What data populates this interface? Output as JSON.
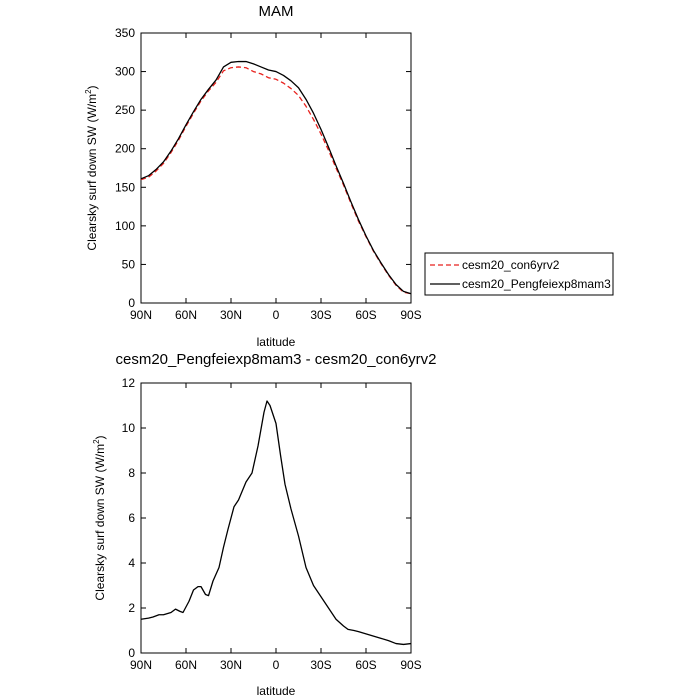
{
  "chart_data": [
    {
      "type": "line",
      "title": "MAM",
      "xlabel": "latitude",
      "ylabel": "Clearsky surf down SW (W/m",
      "ylabel_sup": "2",
      "ylabel_tail": ")",
      "xlim": [
        90,
        -90
      ],
      "ylim": [
        0,
        350
      ],
      "xticks": [
        {
          "value": 90,
          "label": "90N"
        },
        {
          "value": 60,
          "label": "60N"
        },
        {
          "value": 30,
          "label": "30N"
        },
        {
          "value": 0,
          "label": "0"
        },
        {
          "value": -30,
          "label": "30S"
        },
        {
          "value": -60,
          "label": "60S"
        },
        {
          "value": -90,
          "label": "90S"
        }
      ],
      "yticks": [
        0,
        50,
        100,
        150,
        200,
        250,
        300,
        350
      ],
      "grid": false,
      "legend_position": "right",
      "series": [
        {
          "name": "cesm20_con6yrv2",
          "color": "#e8211d",
          "style": "dashed",
          "x": [
            90,
            85,
            80,
            75,
            70,
            65,
            60,
            55,
            50,
            45,
            40,
            35,
            30,
            25,
            20,
            15,
            10,
            5,
            0,
            -5,
            -10,
            -15,
            -20,
            -25,
            -30,
            -35,
            -40,
            -45,
            -50,
            -55,
            -60,
            -65,
            -70,
            -75,
            -80,
            -85,
            -90
          ],
          "y": [
            160,
            163,
            171,
            181,
            195,
            211,
            229,
            246,
            262,
            275,
            286,
            301,
            305,
            306,
            305,
            300,
            297,
            292,
            290,
            285,
            278,
            269,
            255,
            238,
            219,
            198,
            175,
            153,
            129,
            106,
            86,
            67,
            51,
            36,
            23,
            14,
            12
          ]
        },
        {
          "name": "cesm20_Pengfeiexp8mam3",
          "color": "#000000",
          "style": "solid",
          "x": [
            90,
            85,
            80,
            75,
            70,
            65,
            60,
            55,
            50,
            45,
            40,
            35,
            30,
            25,
            20,
            15,
            10,
            5,
            0,
            -5,
            -10,
            -15,
            -20,
            -25,
            -30,
            -35,
            -40,
            -45,
            -50,
            -55,
            -60,
            -65,
            -70,
            -75,
            -80,
            -85,
            -90
          ],
          "y": [
            161,
            165,
            173,
            183,
            197,
            213,
            231,
            248,
            264,
            277,
            289,
            306,
            312,
            313,
            313,
            310,
            306,
            302,
            300,
            295,
            288,
            279,
            264,
            246,
            225,
            202,
            178,
            155,
            131,
            108,
            87,
            68,
            52,
            37,
            24,
            15,
            12
          ]
        }
      ]
    },
    {
      "type": "line",
      "title": "cesm20_Pengfeiexp8mam3 - cesm20_con6yrv2",
      "xlabel": "latitude",
      "ylabel": "Clearsky surf down SW (W/m",
      "ylabel_sup": "2",
      "ylabel_tail": ")",
      "xlim": [
        90,
        -90
      ],
      "ylim": [
        0,
        12
      ],
      "xticks": [
        {
          "value": 90,
          "label": "90N"
        },
        {
          "value": 60,
          "label": "60N"
        },
        {
          "value": 30,
          "label": "30N"
        },
        {
          "value": 0,
          "label": "0"
        },
        {
          "value": -30,
          "label": "30S"
        },
        {
          "value": -60,
          "label": "60S"
        },
        {
          "value": -90,
          "label": "90S"
        }
      ],
      "yticks": [
        0,
        2,
        4,
        6,
        8,
        10,
        12
      ],
      "grid": false,
      "series": [
        {
          "color": "#000000",
          "style": "solid",
          "x": [
            90,
            85,
            82,
            78,
            75,
            70,
            67,
            64,
            62,
            58,
            55,
            52,
            50,
            47,
            45,
            42,
            38,
            35,
            32,
            28,
            25,
            20,
            16,
            12,
            8,
            6,
            4,
            0,
            -3,
            -6,
            -10,
            -15,
            -20,
            -25,
            -30,
            -35,
            -40,
            -45,
            -48,
            -52,
            -55,
            -60,
            -65,
            -70,
            -75,
            -80,
            -85,
            -90
          ],
          "y": [
            1.5,
            1.55,
            1.6,
            1.7,
            1.7,
            1.8,
            1.95,
            1.85,
            1.8,
            2.3,
            2.8,
            2.95,
            2.95,
            2.6,
            2.55,
            3.2,
            3.8,
            4.7,
            5.5,
            6.5,
            6.8,
            7.6,
            8.0,
            9.2,
            10.7,
            11.2,
            11.0,
            10.2,
            8.8,
            7.5,
            6.4,
            5.2,
            3.8,
            3.0,
            2.5,
            2.0,
            1.5,
            1.2,
            1.05,
            1.0,
            0.95,
            0.85,
            0.75,
            0.65,
            0.55,
            0.42,
            0.38,
            0.42
          ]
        }
      ]
    }
  ]
}
